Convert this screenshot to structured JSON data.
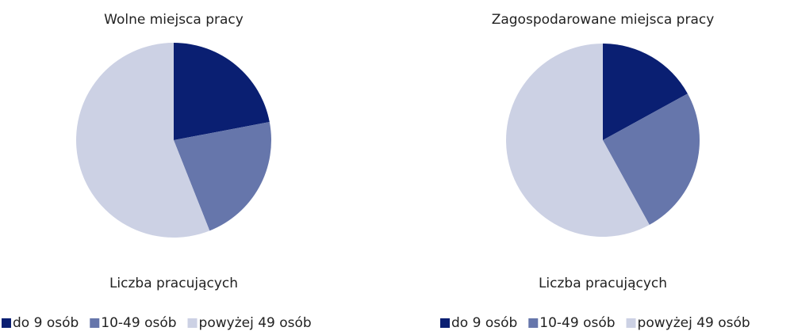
{
  "chart_data": [
    {
      "type": "pie",
      "title": "Wolne miejsca pracy",
      "xlabel": "Liczba pracujących",
      "categories": [
        "do 9 osób",
        "10-49 osób",
        "powyżej 49 osób"
      ],
      "values": [
        22,
        22,
        56
      ],
      "colors": [
        "#0a1f72",
        "#6676ab",
        "#ccd1e4"
      ],
      "legend": "bottom"
    },
    {
      "type": "pie",
      "title": "Zagospodarowane miejsca pracy",
      "xlabel": "Liczba pracujących",
      "categories": [
        "do 9 osób",
        "10-49 osób",
        "powyżej 49 osób"
      ],
      "values": [
        17,
        25,
        58
      ],
      "colors": [
        "#0a1f72",
        "#6676ab",
        "#ccd1e4"
      ],
      "legend": "bottom"
    }
  ]
}
